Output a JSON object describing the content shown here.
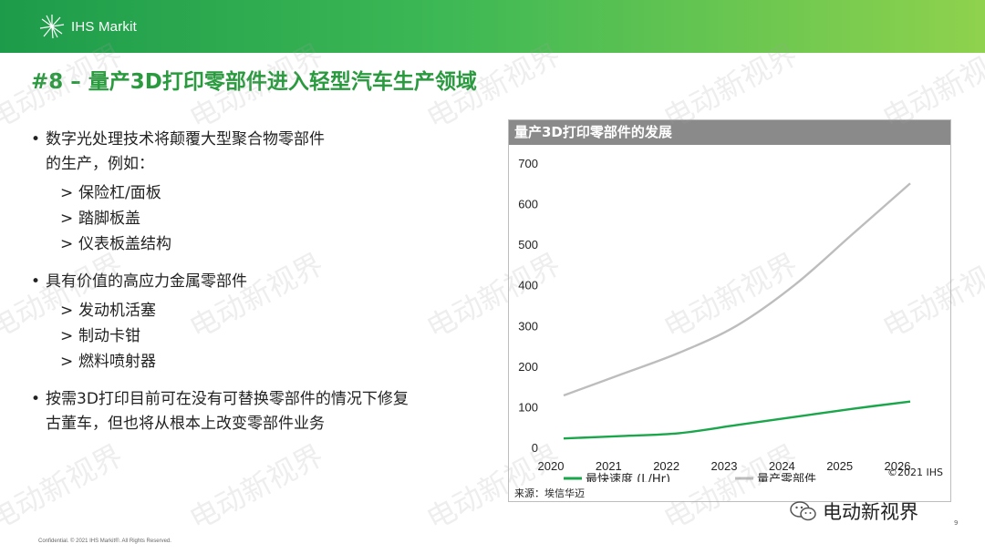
{
  "header": {
    "brand": "IHS Markit"
  },
  "title": "#8 – 量产3D打印零部件进入轻型汽车生产领域",
  "bullets": [
    {
      "text": "数字光处理技术将颠覆大型聚合物零部件",
      "text2": "的生产，例如：",
      "subs": [
        "保险杠/面板",
        "踏脚板盖",
        "仪表板盖结构"
      ]
    },
    {
      "text": "具有价值的高应力金属零部件",
      "subs": [
        "发动机活塞",
        "制动卡钳",
        "燃料喷射器"
      ]
    },
    {
      "text": "按需3D打印目前可在没有可替换零部件的情况下修复",
      "text2": "古董车，但也将从根本上改变零部件业务",
      "subs": []
    }
  ],
  "bullet_marker": "•",
  "sub_marker": ">",
  "chart_data": {
    "type": "line",
    "title": "量产3D打印零部件的发展",
    "x": [
      2020,
      2021,
      2022,
      2023,
      2024,
      2025,
      2026
    ],
    "ylim": [
      0,
      700
    ],
    "yticks": [
      0,
      100,
      200,
      300,
      400,
      500,
      600,
      700
    ],
    "grid": false,
    "legend": "bottom",
    "series": [
      {
        "name": "最快速度 (L/Hr)",
        "color": "#1aa64a",
        "values": [
          22,
          28,
          35,
          55,
          75,
          95,
          113
        ]
      },
      {
        "name": "量产零部件",
        "color": "#bdbdbd",
        "values": [
          128,
          180,
          233,
          300,
          400,
          525,
          650
        ]
      }
    ],
    "source": "来源：埃信华迈",
    "copyright": "©2021 IHS"
  },
  "footer": {
    "confidential": "Confidential. © 2021 IHS Markit®. All Rights Reserved.",
    "page": "9"
  },
  "watermark": {
    "text": "电动新视界"
  },
  "colors": {
    "accent": "#2a9a3f",
    "header_band": "#8a8a8a"
  }
}
